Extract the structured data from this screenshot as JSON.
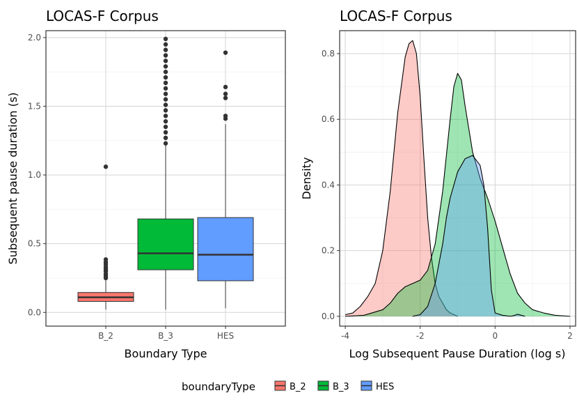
{
  "chart_data": [
    {
      "type": "box",
      "title": "LOCAS-F Corpus",
      "xlabel": "Boundary Type",
      "ylabel": "Subsequent pause duration (s)",
      "ylim": [
        -0.1,
        2.05
      ],
      "yticks": [
        0.0,
        0.5,
        1.0,
        1.5,
        2.0
      ],
      "ytick_labels": [
        "0.0",
        "0.5",
        "1.0",
        "1.5",
        "2.0"
      ],
      "grid": true,
      "categories": [
        "B_2",
        "B_3",
        "HES"
      ],
      "boxes": [
        {
          "name": "B_2",
          "color": "#F8766D",
          "whisker_low": 0.02,
          "q1": 0.08,
          "median": 0.11,
          "q3": 0.145,
          "whisker_high": 0.235,
          "outliers": [
            0.25,
            0.265,
            0.28,
            0.3,
            0.315,
            0.33,
            0.35,
            0.365,
            0.385,
            1.06
          ]
        },
        {
          "name": "B_3",
          "color": "#00BA38",
          "whisker_low": 0.02,
          "q1": 0.31,
          "median": 0.43,
          "q3": 0.68,
          "whisker_high": 1.22,
          "outliers": [
            1.23,
            1.27,
            1.31,
            1.35,
            1.39,
            1.43,
            1.47,
            1.51,
            1.55,
            1.59,
            1.63,
            1.67,
            1.71,
            1.75,
            1.79,
            1.83,
            1.87,
            1.91,
            1.95,
            1.99
          ]
        },
        {
          "name": "HES",
          "color": "#619CFF",
          "whisker_low": 0.03,
          "q1": 0.23,
          "median": 0.42,
          "q3": 0.69,
          "whisker_high": 1.37,
          "outliers": [
            1.41,
            1.43,
            1.56,
            1.59,
            1.64,
            1.89
          ]
        }
      ]
    },
    {
      "type": "area",
      "title": "LOCAS-F Corpus",
      "xlabel": "Log Subsequent Pause Duration (log s)",
      "ylabel": "Density",
      "xlim": [
        -4.15,
        2.15
      ],
      "ylim": [
        -0.03,
        0.87
      ],
      "xticks": [
        -4,
        -2,
        0,
        2
      ],
      "xtick_labels": [
        "-4",
        "-2",
        "0",
        "2"
      ],
      "yticks": [
        0.0,
        0.2,
        0.4,
        0.6,
        0.8
      ],
      "ytick_labels": [
        "0.0",
        "0.2",
        "0.4",
        "0.6",
        "0.8"
      ],
      "grid": true,
      "series": [
        {
          "name": "B_2",
          "color": "#F8766D",
          "x": [
            -4.0,
            -3.8,
            -3.6,
            -3.4,
            -3.2,
            -3.0,
            -2.8,
            -2.6,
            -2.4,
            -2.3,
            -2.2,
            -2.1,
            -2.0,
            -1.9,
            -1.8,
            -1.7,
            -1.6,
            -1.5,
            -1.4,
            -1.3,
            -1.2,
            -1.1,
            -1.0
          ],
          "y": [
            0.005,
            0.01,
            0.03,
            0.06,
            0.1,
            0.2,
            0.38,
            0.62,
            0.79,
            0.83,
            0.84,
            0.8,
            0.67,
            0.48,
            0.3,
            0.18,
            0.1,
            0.06,
            0.04,
            0.02,
            0.01,
            0.005,
            0.0
          ]
        },
        {
          "name": "B_3",
          "color": "#00BA38",
          "x": [
            -4.0,
            -3.5,
            -3.0,
            -2.8,
            -2.6,
            -2.4,
            -2.2,
            -2.0,
            -1.8,
            -1.6,
            -1.4,
            -1.2,
            -1.1,
            -1.0,
            -0.9,
            -0.8,
            -0.6,
            -0.4,
            -0.2,
            0.0,
            0.2,
            0.4,
            0.6,
            0.8,
            1.0,
            1.3,
            1.6,
            2.0
          ],
          "y": [
            0.0,
            0.003,
            0.02,
            0.04,
            0.07,
            0.09,
            0.1,
            0.11,
            0.14,
            0.22,
            0.38,
            0.6,
            0.7,
            0.74,
            0.72,
            0.64,
            0.5,
            0.42,
            0.36,
            0.29,
            0.21,
            0.13,
            0.07,
            0.04,
            0.02,
            0.01,
            0.003,
            0.0
          ]
        },
        {
          "name": "HES",
          "color": "#619CFF",
          "x": [
            -2.2,
            -2.0,
            -1.8,
            -1.6,
            -1.4,
            -1.3,
            -1.2,
            -1.0,
            -0.8,
            -0.6,
            -0.4,
            -0.3,
            -0.2,
            -0.1,
            0.0,
            0.2,
            0.4,
            0.5,
            0.6,
            0.7,
            0.8
          ],
          "y": [
            0.0,
            0.005,
            0.03,
            0.1,
            0.22,
            0.3,
            0.36,
            0.44,
            0.48,
            0.49,
            0.46,
            0.4,
            0.27,
            0.08,
            0.01,
            0.003,
            0.0,
            0.002,
            0.006,
            0.003,
            0.0
          ]
        }
      ]
    }
  ],
  "legend": {
    "title": "boundaryType",
    "items": [
      {
        "label": "B_2",
        "color": "#F8766D"
      },
      {
        "label": "B_3",
        "color": "#00BA38"
      },
      {
        "label": "HES",
        "color": "#619CFF"
      }
    ]
  }
}
